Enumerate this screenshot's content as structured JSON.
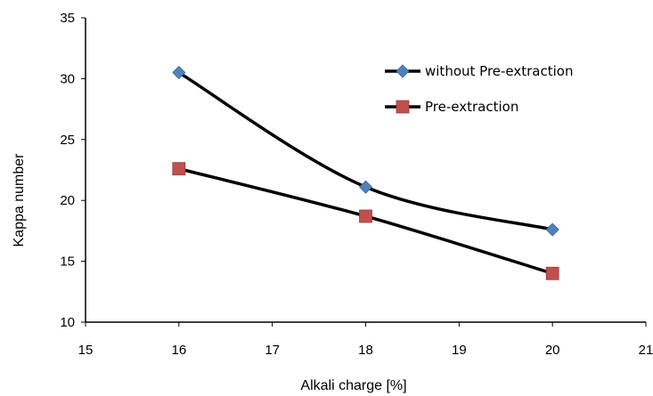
{
  "chart_data": {
    "type": "line",
    "title": "",
    "xlabel": "Alkali charge [%]",
    "ylabel": "Kappa number",
    "xlim": [
      15,
      21
    ],
    "ylim": [
      10,
      35
    ],
    "xticks": [
      15,
      16,
      17,
      18,
      19,
      20,
      21
    ],
    "yticks": [
      10,
      15,
      20,
      25,
      30,
      35
    ],
    "grid": false,
    "smooth": true,
    "legend_position": "top-right",
    "series": [
      {
        "name": "without Pre-extraction",
        "marker": "diamond",
        "marker_color": "#4F81BD",
        "line_color": "#000000",
        "x": [
          16,
          18,
          20
        ],
        "y": [
          30.5,
          21.1,
          17.6
        ]
      },
      {
        "name": "Pre-extraction",
        "marker": "square",
        "marker_color": "#C0504D",
        "line_color": "#000000",
        "x": [
          16,
          18,
          20
        ],
        "y": [
          22.6,
          18.7,
          14.0
        ]
      }
    ]
  }
}
